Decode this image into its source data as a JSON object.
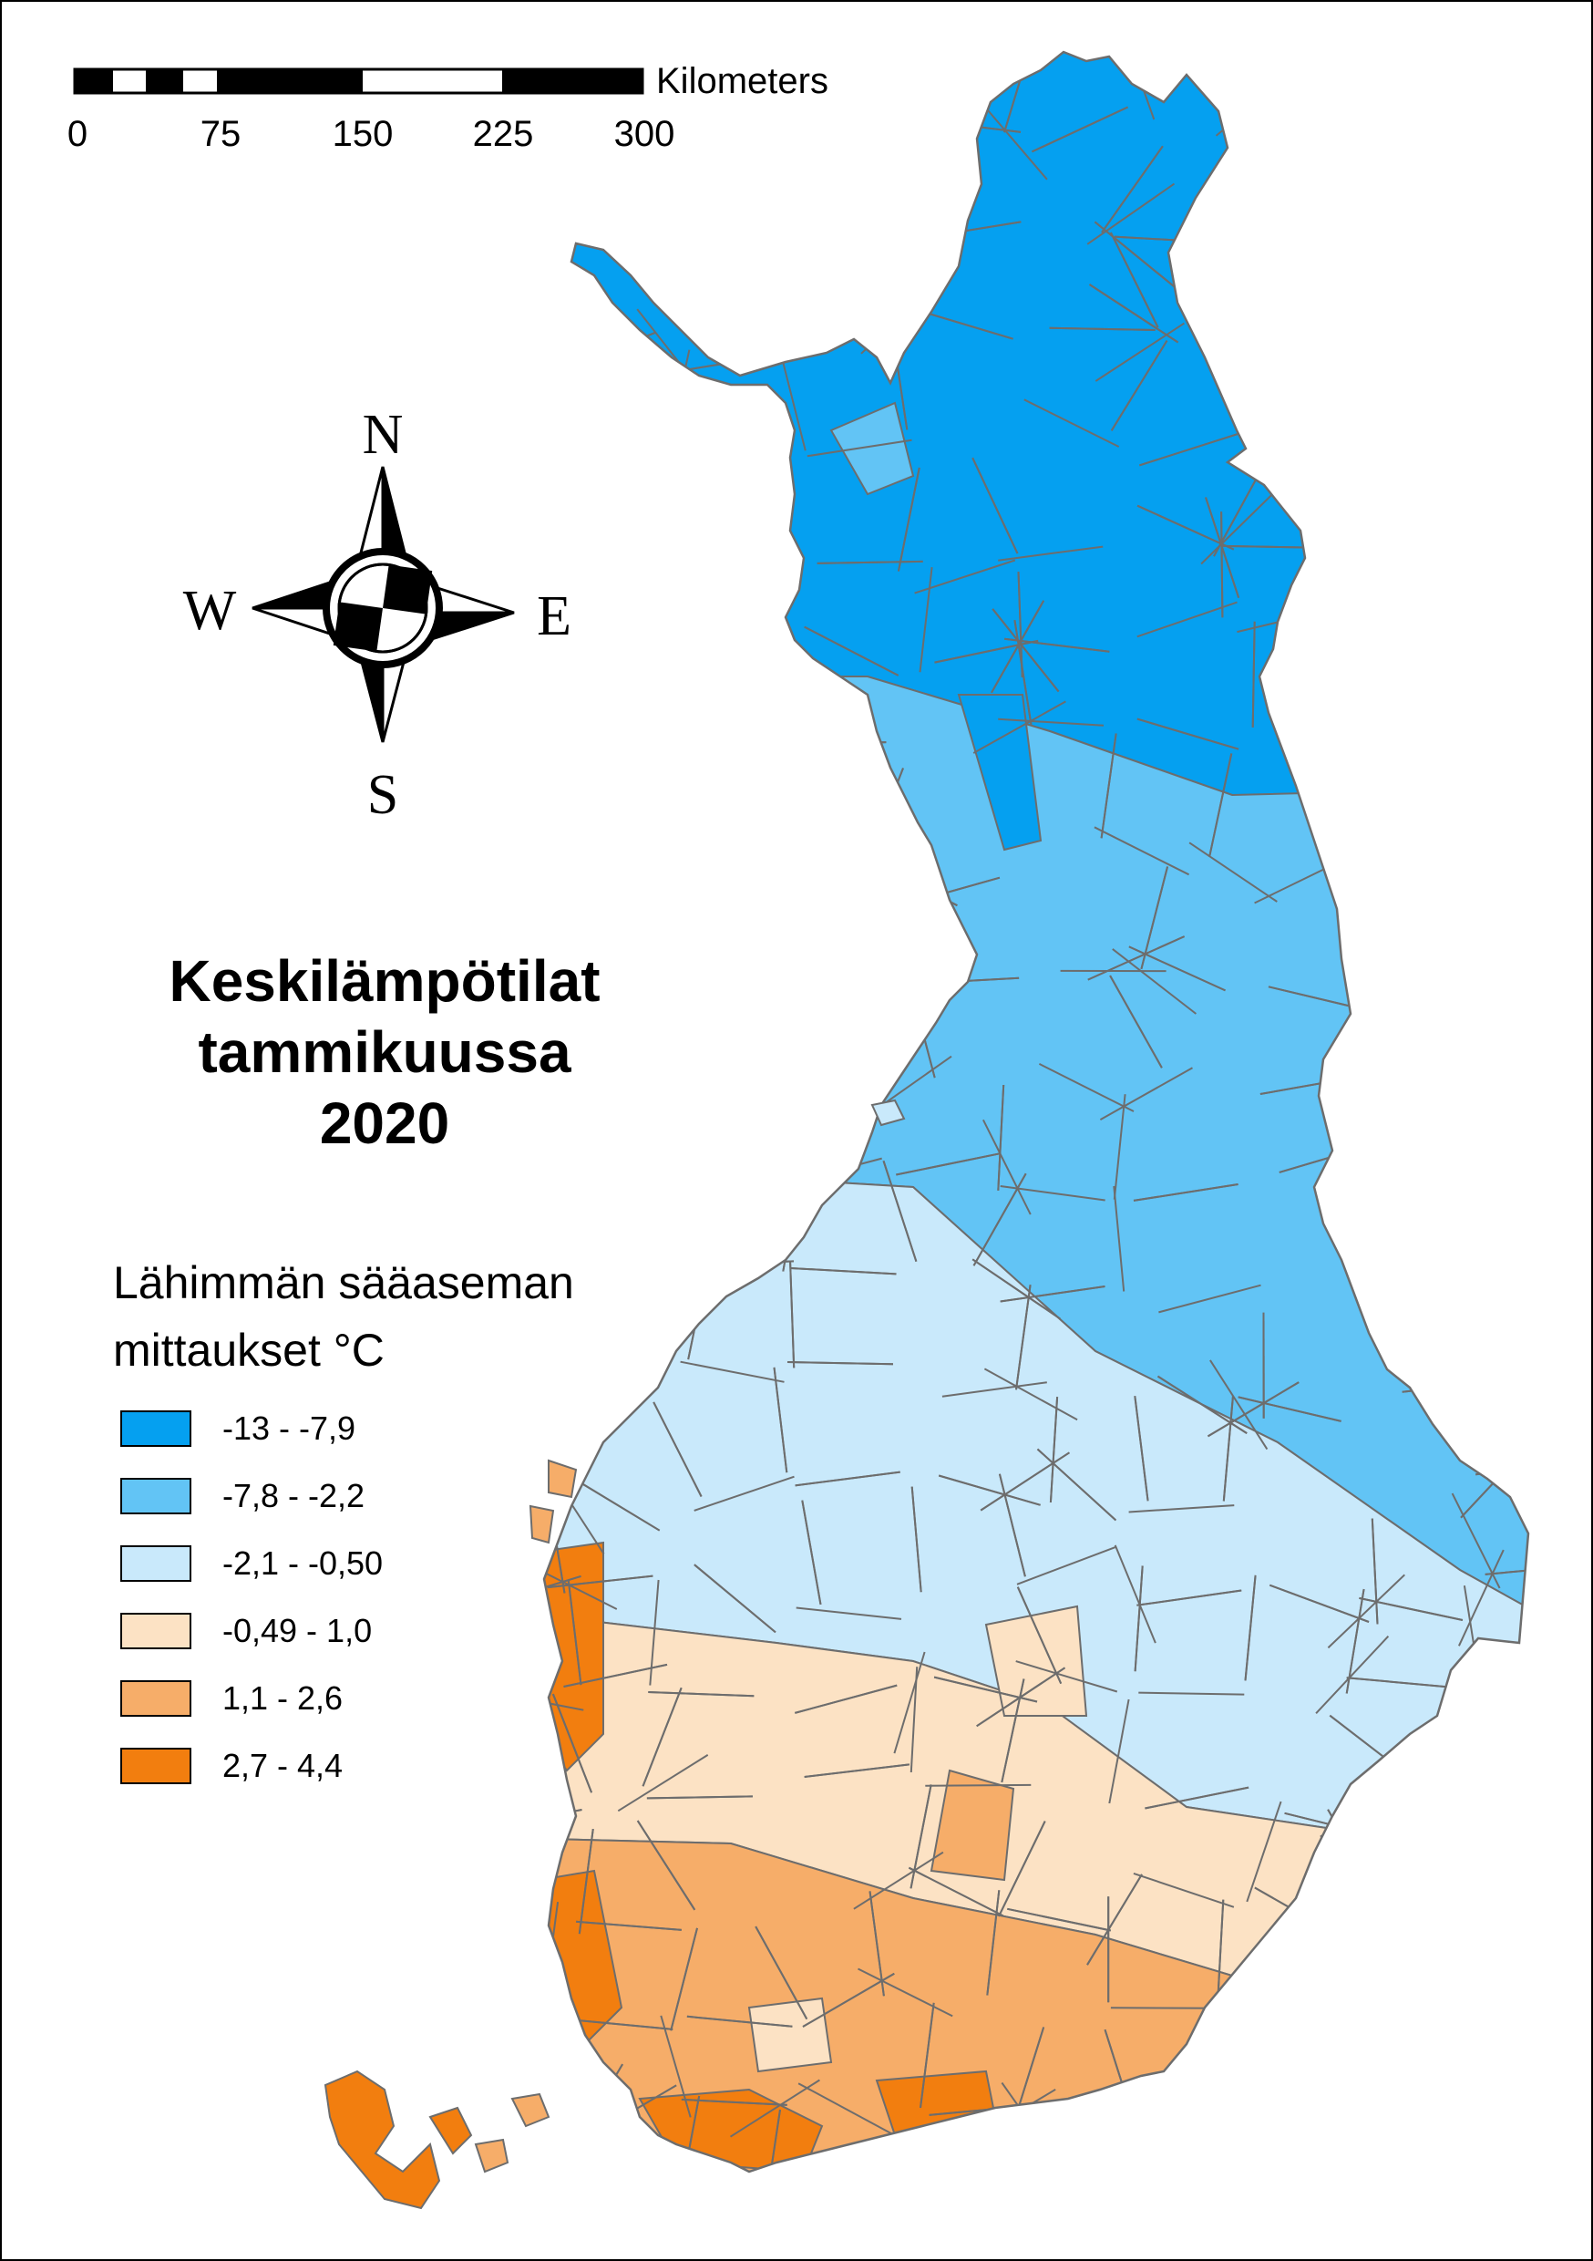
{
  "title": {
    "line1": "Keskilämpötilat",
    "line2": "tammikuussa",
    "line3": "2020"
  },
  "legend": {
    "heading_line1": "Lähimmän sääaseman",
    "heading_line2": "mittaukset °C",
    "classes": [
      {
        "label": "-13 - -7,9",
        "color": "#05a0f0"
      },
      {
        "label": "-7,8 - -2,2",
        "color": "#62c4f5"
      },
      {
        "label": "-2,1 - -0,50",
        "color": "#c9e9fb"
      },
      {
        "label": "-0,49 - 1,0",
        "color": "#fce2c4"
      },
      {
        "label": "1,1 - 2,6",
        "color": "#f6ad69"
      },
      {
        "label": "2,7 - 4,4",
        "color": "#f27e0f"
      }
    ]
  },
  "scale_bar": {
    "unit": "Kilometers",
    "ticks": [
      "0",
      "75",
      "150",
      "225",
      "300"
    ]
  },
  "compass": {
    "north": "N",
    "south": "S",
    "east": "E",
    "west": "W"
  },
  "map": {
    "region": "Finland",
    "cell_border_color": "#6d6d6d"
  }
}
